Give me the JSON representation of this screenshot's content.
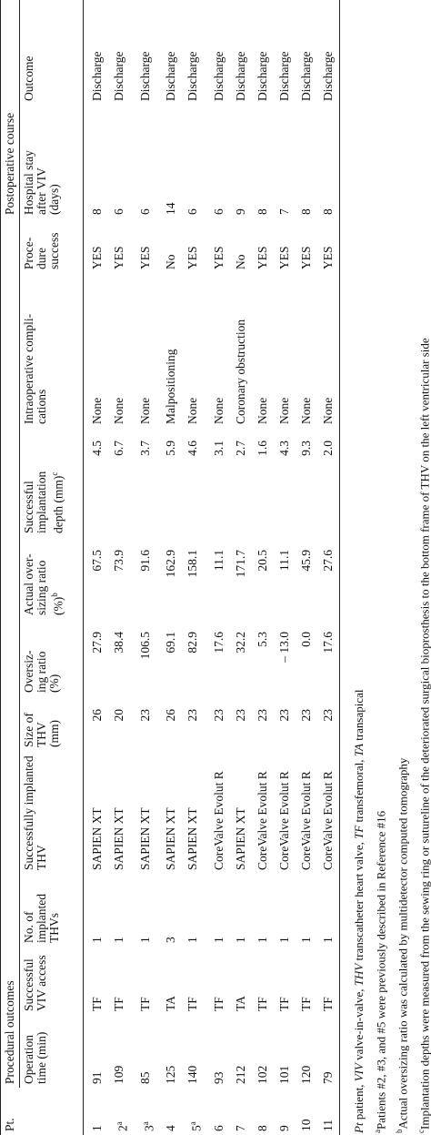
{
  "table": {
    "group_headers": {
      "pt": "Pt.",
      "procedural": "Procedural outcomes",
      "postoperative": "Postoperative course"
    },
    "columns": [
      {
        "text": ""
      },
      {
        "text": "Operation\ntime (min)"
      },
      {
        "text": "Successful\nVIV access"
      },
      {
        "text": "No. of\nimplanted\nTHVs"
      },
      {
        "text": "Successfully implanted\nTHV"
      },
      {
        "text": "Size of\nTHV\n(mm)"
      },
      {
        "text": "Oversiz-\ning ratio\n(%)"
      },
      {
        "text": "Actual over-\nsizing ratio\n(%)",
        "sup": "b"
      },
      {
        "text": "Successful\nimplantation\ndepth (mm)",
        "sup": "c"
      },
      {
        "text": "Intraoperative compli-\ncations"
      },
      {
        "text": "Proce-\ndure\nsuccess"
      },
      {
        "text": "Hospital stay\nafter VIV\n(days)"
      },
      {
        "text": "Outcome"
      }
    ],
    "rows": [
      [
        "1",
        "91",
        "TF",
        "1",
        "SAPIEN XT",
        "26",
        "27.9",
        "67.5",
        "4.5",
        "None",
        "YES",
        "8",
        "Discharge"
      ],
      [
        "2",
        "109",
        "TF",
        "1",
        "SAPIEN XT",
        "20",
        "38.4",
        "73.9",
        "6.7",
        "None",
        "YES",
        "6",
        "Discharge"
      ],
      [
        "3",
        "85",
        "TF",
        "1",
        "SAPIEN XT",
        "23",
        "106.5",
        "91.6",
        "3.7",
        "None",
        "YES",
        "6",
        "Discharge"
      ],
      [
        "4",
        "125",
        "TA",
        "3",
        "SAPIEN XT",
        "26",
        "69.1",
        "162.9",
        "5.9",
        "Malpositioning",
        "No",
        "14",
        "Discharge"
      ],
      [
        "5",
        "140",
        "TF",
        "1",
        "SAPIEN XT",
        "23",
        "82.9",
        "158.1",
        "4.6",
        "None",
        "YES",
        "6",
        "Discharge"
      ],
      [
        "6",
        "93",
        "TF",
        "1",
        "CoreValve Evolut R",
        "23",
        "17.6",
        "11.1",
        "3.1",
        "None",
        "YES",
        "6",
        "Discharge"
      ],
      [
        "7",
        "212",
        "TA",
        "1",
        "SAPIEN XT",
        "23",
        "32.2",
        "171.7",
        "2.7",
        "Coronary obstruction",
        "No",
        "9",
        "Discharge"
      ],
      [
        "8",
        "102",
        "TF",
        "1",
        "CoreValve Evolut R",
        "23",
        "5.3",
        "20.5",
        "1.6",
        "None",
        "YES",
        "8",
        "Discharge"
      ],
      [
        "9",
        "101",
        "TF",
        "1",
        "CoreValve Evolut R",
        "23",
        "– 13.0",
        "11.1",
        "4.3",
        "None",
        "YES",
        "7",
        "Discharge"
      ],
      [
        "10",
        "120",
        "TF",
        "1",
        "CoreValve Evolut R",
        "23",
        "0.0",
        "45.9",
        "9.3",
        "None",
        "YES",
        "8",
        "Discharge"
      ],
      [
        "11",
        "79",
        "TF",
        "1",
        "CoreValve Evolut R",
        "23",
        "17.6",
        "27.6",
        "2.0",
        "None",
        "YES",
        "8",
        "Discharge"
      ]
    ],
    "row_notes": {
      "1": "a",
      "2": "a",
      "4": "a"
    },
    "abbreviations": [
      {
        "abbr": "Pt",
        "meaning": "patient,"
      },
      {
        "abbr": "VIV",
        "meaning": "valve-in-valve,"
      },
      {
        "abbr": "THV",
        "meaning": "transcatheter heart valve,"
      },
      {
        "abbr": "TF",
        "meaning": "transfemoral,"
      },
      {
        "abbr": "TA",
        "meaning": "transapical"
      }
    ],
    "footnotes": [
      {
        "mark": "a",
        "text": "Patients #2, #3, and #5 were previously described in Reference #16"
      },
      {
        "mark": "b",
        "text": "Actual oversizing ratio was calculated by multidetector computed tomography"
      },
      {
        "mark": "c",
        "text": "Implantation depths were measured from the sewing ring or sutureline of the deteriorated surgical bioprosthesis to the bottom frame of THV on the left ventricular side"
      }
    ]
  }
}
